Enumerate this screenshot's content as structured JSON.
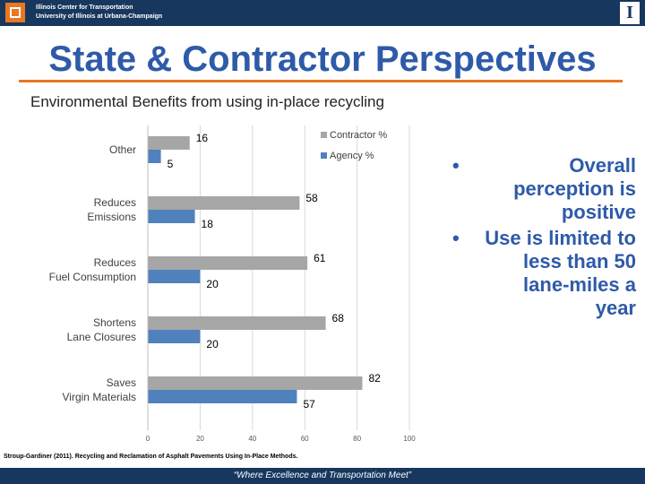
{
  "header": {
    "line1": "Illinois Center for Transportation",
    "line2": "University of Illinois at Urbana-Champaign",
    "right_logo_letter": "I",
    "left_logo_icon": "ict-logo-icon",
    "right_logo_icon": "illinois-block-i-icon"
  },
  "slide": {
    "title": "State & Contractor Perspectives",
    "subtitle": "Environmental Benefits from using in-place recycling",
    "bullets": [
      {
        "symbol": "•",
        "text": "Overall perception is positive"
      },
      {
        "symbol": "•",
        "text": "Use is limited to less than 50 lane-miles a year"
      }
    ],
    "citation": "Stroup-Gardiner (2011). Recycling and Reclamation of Asphalt Pavements Using In-Place Methods.",
    "footer": "“Where Excellence and Transportation Meet”"
  },
  "colors": {
    "header_bg": "#17375e",
    "accent": "#e87722",
    "title": "#2e5aa8",
    "contractor": "#a6a6a6",
    "agency": "#4f81bd"
  },
  "chart_data": {
    "type": "bar",
    "orientation": "horizontal",
    "categories": [
      "Other",
      "Reduces\nEmissions",
      "Reduces\nFuel Consumption",
      "Shortens\nLane Closures",
      "Saves\nVirgin Materials"
    ],
    "series": [
      {
        "name": "Contractor %",
        "values": [
          16,
          58,
          61,
          68,
          82
        ]
      },
      {
        "name": "Agency %",
        "values": [
          5,
          18,
          20,
          20,
          57
        ]
      }
    ],
    "xlim": [
      0,
      100
    ],
    "xticks": [
      "0",
      "20",
      "40",
      "60",
      "80",
      "100"
    ],
    "grid": true,
    "legend": "top-right"
  }
}
